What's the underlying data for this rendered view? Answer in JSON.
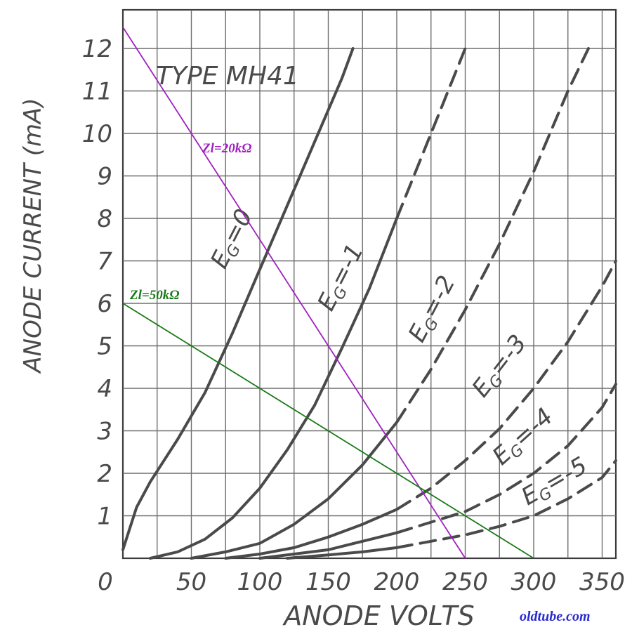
{
  "chart_data": {
    "type": "line",
    "title": "TYPE MH41",
    "xlabel": "ANODE VOLTS",
    "ylabel": "ANODE CURRENT (mA)",
    "xlim": [
      0,
      360
    ],
    "ylim": [
      0,
      12.6
    ],
    "x_ticks": [
      "0",
      "50",
      "100",
      "150",
      "200",
      "250",
      "300",
      "350"
    ],
    "y_ticks": [
      "0",
      "1",
      "2",
      "3",
      "4",
      "5",
      "6",
      "7",
      "8",
      "9",
      "10",
      "11",
      "12"
    ],
    "grid": true,
    "series": [
      {
        "label": "EG=0",
        "label_name": "E",
        "label_sub": "G",
        "label_rest": "=0",
        "style": "solid",
        "x": [
          0,
          10,
          20,
          40,
          60,
          80,
          100,
          120,
          140,
          160,
          168
        ],
        "y": [
          0.2,
          1.2,
          1.8,
          2.8,
          3.9,
          5.3,
          6.8,
          8.3,
          9.8,
          11.3,
          12.0
        ]
      },
      {
        "label": "EG=-1",
        "label_name": "E",
        "label_sub": "G",
        "label_rest": "=-1",
        "style": "solid",
        "x": [
          20,
          40,
          60,
          80,
          100,
          120,
          140,
          160,
          180,
          200
        ],
        "y": [
          0,
          0.15,
          0.45,
          0.95,
          1.65,
          2.55,
          3.6,
          4.95,
          6.35,
          8.0
        ]
      },
      {
        "label": "EG=-1 (extension)",
        "style": "dashed",
        "x": [
          200,
          225,
          250
        ],
        "y": [
          8.0,
          10.0,
          12.0
        ]
      },
      {
        "label": "EG=-2",
        "label_name": "E",
        "label_sub": "G",
        "label_rest": "=-2",
        "style": "solid",
        "x": [
          50,
          75,
          100,
          125,
          150,
          175,
          200
        ],
        "y": [
          0,
          0.15,
          0.35,
          0.8,
          1.4,
          2.2,
          3.2
        ]
      },
      {
        "label": "EG=-2 (extension)",
        "style": "dashed",
        "x": [
          200,
          225,
          250,
          275,
          300,
          325,
          340
        ],
        "y": [
          3.2,
          4.45,
          5.85,
          7.4,
          9.1,
          11.0,
          12.0
        ]
      },
      {
        "label": "EG=-3",
        "label_name": "E",
        "label_sub": "G",
        "label_rest": "=-3",
        "style": "solid",
        "x": [
          75,
          100,
          125,
          150,
          175,
          200
        ],
        "y": [
          0,
          0.1,
          0.25,
          0.5,
          0.8,
          1.15
        ]
      },
      {
        "label": "EG=-3 (extension)",
        "style": "dashed",
        "x": [
          200,
          225,
          250,
          275,
          300,
          325,
          350,
          360
        ],
        "y": [
          1.15,
          1.65,
          2.3,
          3.05,
          4.0,
          5.1,
          6.4,
          7.0
        ]
      },
      {
        "label": "EG=-4",
        "label_name": "E",
        "label_sub": "G",
        "label_rest": "=-4",
        "style": "solid",
        "x": [
          100,
          125,
          150,
          175,
          200
        ],
        "y": [
          0,
          0.1,
          0.2,
          0.4,
          0.6
        ]
      },
      {
        "label": "EG=-4 (extension)",
        "style": "dashed",
        "x": [
          200,
          225,
          250,
          275,
          300,
          325,
          350,
          360
        ],
        "y": [
          0.6,
          0.85,
          1.1,
          1.5,
          2.0,
          2.65,
          3.55,
          4.1
        ]
      },
      {
        "label": "EG=-5",
        "label_name": "E",
        "label_sub": "G",
        "label_rest": "=-5",
        "style": "solid",
        "x": [
          120,
          150,
          175,
          200
        ],
        "y": [
          0,
          0.08,
          0.15,
          0.25
        ]
      },
      {
        "label": "EG=-5 (extension)",
        "style": "dashed",
        "x": [
          200,
          225,
          250,
          275,
          300,
          325,
          350,
          360
        ],
        "y": [
          0.25,
          0.4,
          0.55,
          0.75,
          1.0,
          1.4,
          1.9,
          2.3
        ]
      }
    ],
    "load_lines": [
      {
        "label": "Zl=20kΩ",
        "color": "#a020c0",
        "x": [
          0,
          250
        ],
        "y": [
          12.5,
          0
        ]
      },
      {
        "label": "Zl=50kΩ",
        "color": "#1a7a1a",
        "x": [
          0,
          300
        ],
        "y": [
          6.0,
          0
        ]
      }
    ],
    "watermark": "oldtube.com",
    "colors": {
      "ink": "#4a4a4a",
      "grid": "#6e6e6e",
      "watermark": "#2a2ad0"
    }
  }
}
